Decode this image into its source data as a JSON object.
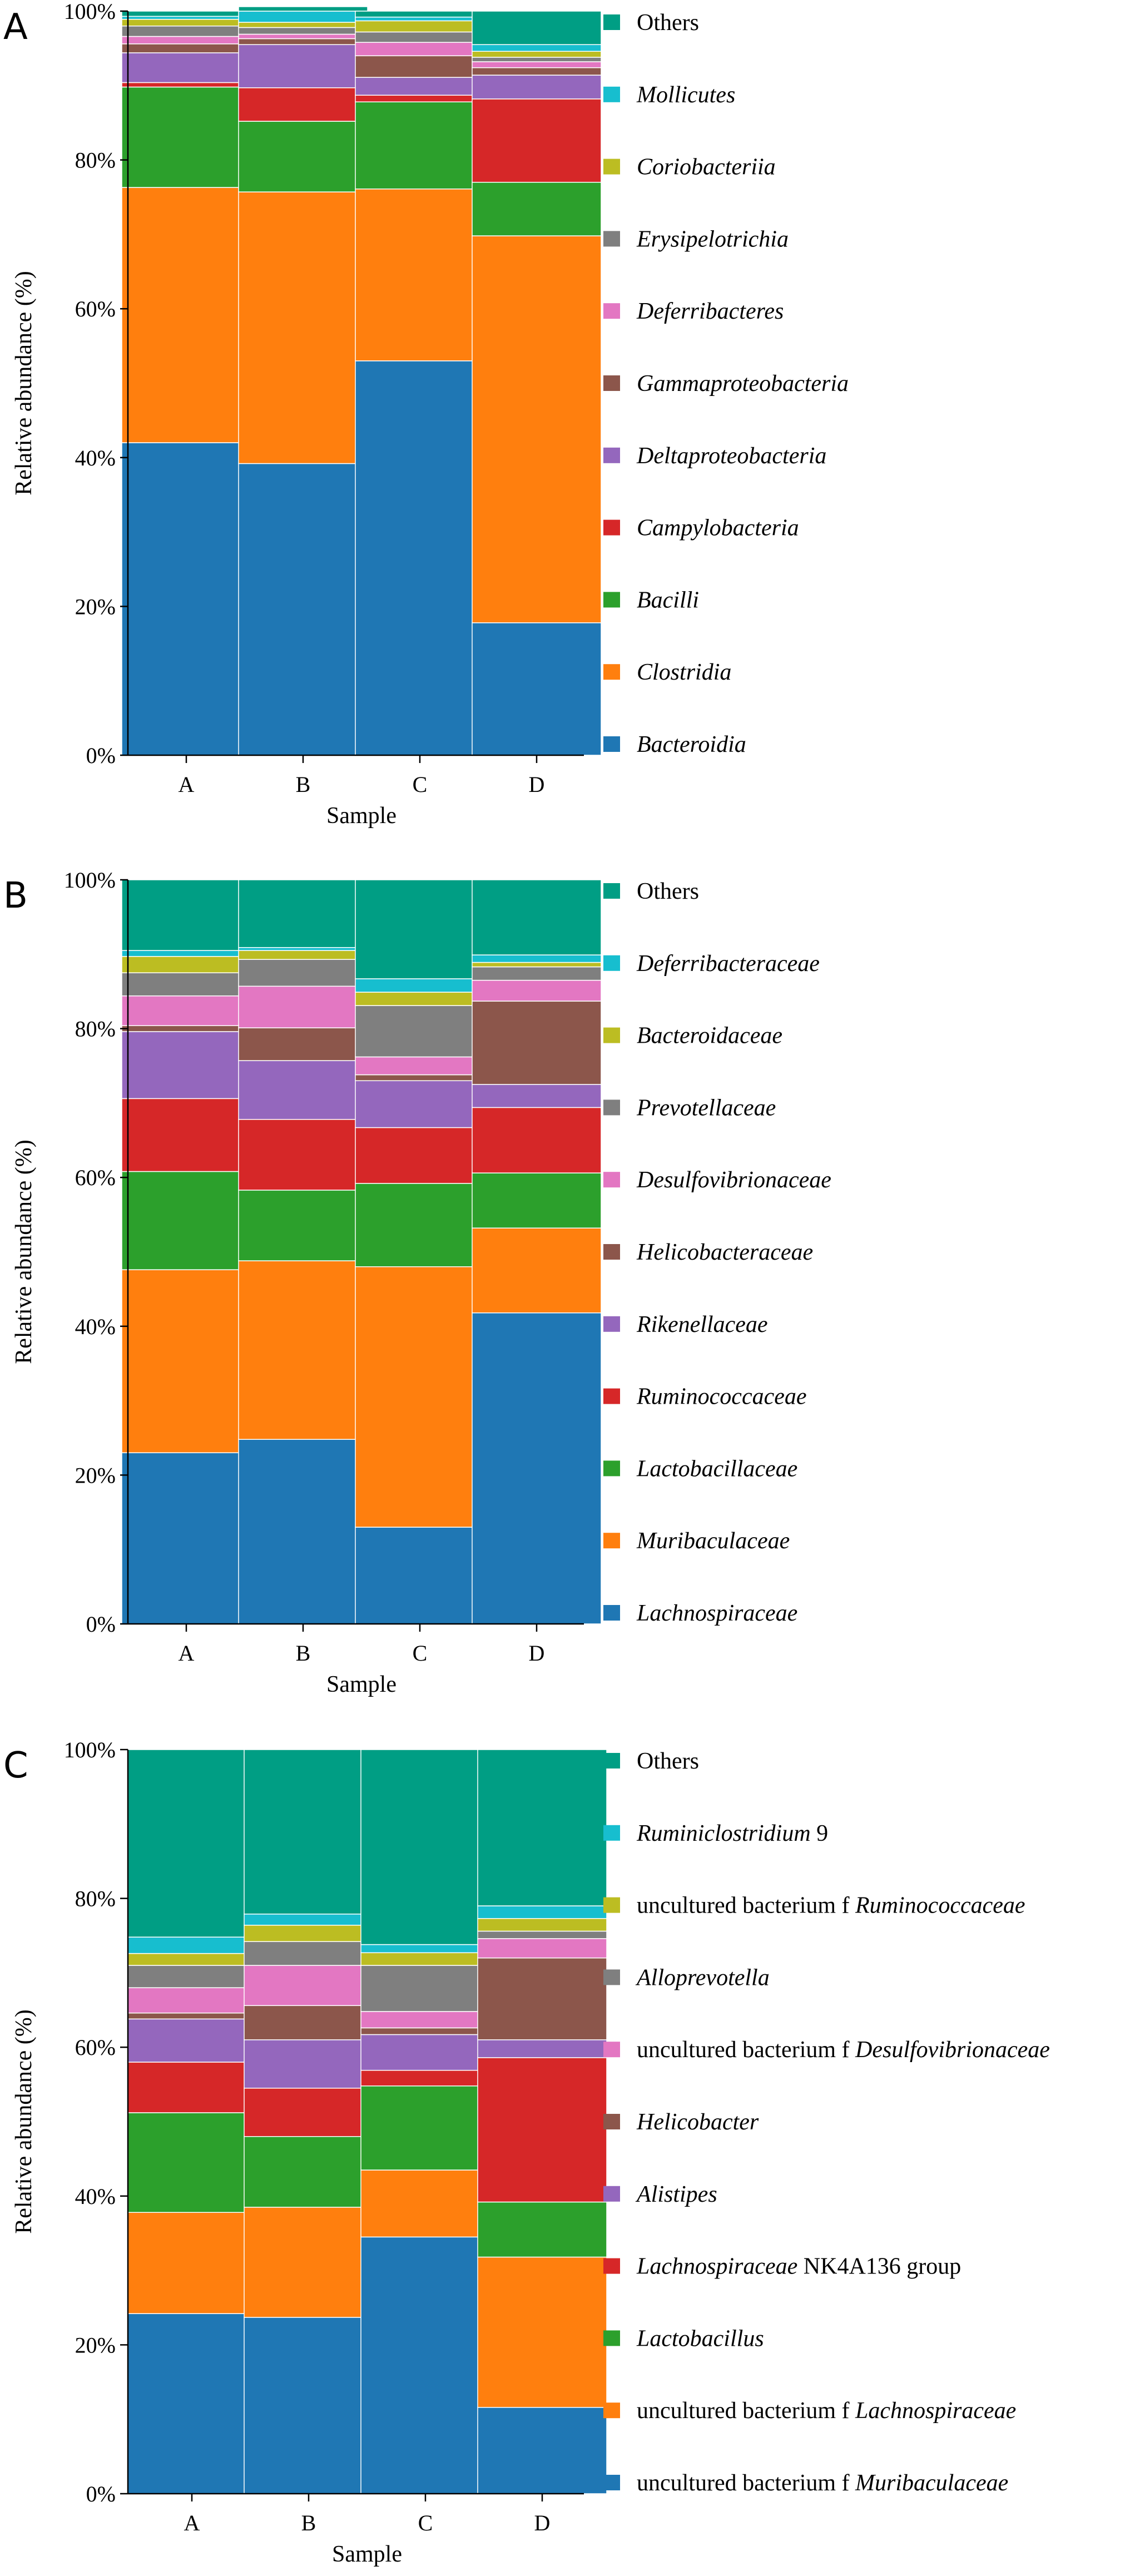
{
  "colors": {
    "Bacteroidia": "#1f77b4",
    "Clostridia": "#ff7f0e",
    "Bacilli": "#2ca02c",
    "Campylobacteria": "#d62728",
    "Deltaproteobacteria": "#9467bd",
    "Gammaproteobacteria": "#8c564b",
    "Deferribacteres": "#e377c2",
    "Erysipelotrichia": "#7f7f7f",
    "Coriobacteriia": "#bcbd22",
    "Mollicutes": "#17becf",
    "Others": "#009e84"
  },
  "chart_data": [
    {
      "type": "bar",
      "stacked": true,
      "panel_label": "A",
      "title": "",
      "xlabel": "Sample",
      "ylabel": "Relative abundance (%)",
      "ylim": [
        0,
        100
      ],
      "y_ticks": [
        "0%",
        "20%",
        "40%",
        "60%",
        "80%",
        "100%"
      ],
      "categories": [
        "A",
        "B",
        "C",
        "D"
      ],
      "legend_position": "right",
      "series": [
        {
          "name": "Bacteroidia",
          "italic": true,
          "values": [
            42.0,
            39.2,
            53.0,
            17.8
          ]
        },
        {
          "name": "Clostridia",
          "italic": true,
          "values": [
            34.3,
            36.5,
            23.1,
            52.0
          ]
        },
        {
          "name": "Bacilli",
          "italic": true,
          "values": [
            13.5,
            9.5,
            11.7,
            7.2
          ]
        },
        {
          "name": "Campylobacteria",
          "italic": true,
          "values": [
            0.6,
            4.5,
            0.9,
            11.2
          ]
        },
        {
          "name": "Deltaproteobacteria",
          "italic": true,
          "values": [
            4.0,
            5.8,
            2.4,
            3.2
          ]
        },
        {
          "name": "Gammaproteobacteria",
          "italic": true,
          "values": [
            1.2,
            0.8,
            2.9,
            1.0
          ]
        },
        {
          "name": "Deferribacteres",
          "italic": true,
          "values": [
            1.0,
            0.6,
            1.8,
            0.8
          ]
        },
        {
          "name": "Erysipelotrichia",
          "italic": true,
          "values": [
            1.4,
            0.9,
            1.4,
            0.6
          ]
        },
        {
          "name": "Coriobacteriia",
          "italic": true,
          "values": [
            0.9,
            0.7,
            1.5,
            0.8
          ]
        },
        {
          "name": "Mollicutes",
          "italic": true,
          "values": [
            0.4,
            1.5,
            0.5,
            0.9
          ]
        },
        {
          "name": "Others",
          "italic": false,
          "values": [
            0.7,
            0.6,
            0.8,
            4.5
          ]
        }
      ]
    },
    {
      "type": "bar",
      "stacked": true,
      "panel_label": "B",
      "title": "",
      "xlabel": "Sample",
      "ylabel": "Relative abundance (%)",
      "ylim": [
        0,
        100
      ],
      "y_ticks": [
        "0%",
        "20%",
        "40%",
        "60%",
        "80%",
        "100%"
      ],
      "categories": [
        "A",
        "B",
        "C",
        "D"
      ],
      "legend_position": "right",
      "series": [
        {
          "name": "Lachnospiraceae",
          "italic": true,
          "color": "#1f77b4",
          "values": [
            23.0,
            24.8,
            13.0,
            41.8
          ]
        },
        {
          "name": "Muribaculaceae",
          "italic": true,
          "color": "#ff7f0e",
          "values": [
            24.6,
            24.0,
            35.0,
            11.4
          ]
        },
        {
          "name": "Lactobacillaceae",
          "italic": true,
          "color": "#2ca02c",
          "values": [
            13.2,
            9.5,
            11.2,
            7.4
          ]
        },
        {
          "name": "Ruminococcaceae",
          "italic": true,
          "color": "#d62728",
          "values": [
            9.8,
            9.5,
            7.5,
            8.8
          ]
        },
        {
          "name": "Rikenellaceae",
          "italic": true,
          "color": "#9467bd",
          "values": [
            9.0,
            7.9,
            6.3,
            3.1
          ]
        },
        {
          "name": "Helicobacteraceae",
          "italic": true,
          "color": "#8c564b",
          "values": [
            0.8,
            4.4,
            0.8,
            11.2
          ]
        },
        {
          "name": "Desulfovibrionaceae",
          "italic": true,
          "color": "#e377c2",
          "values": [
            4.0,
            5.6,
            2.4,
            2.8
          ]
        },
        {
          "name": "Prevotellaceae",
          "italic": true,
          "color": "#7f7f7f",
          "values": [
            3.1,
            3.6,
            6.9,
            1.8
          ]
        },
        {
          "name": "Bacteroidaceae",
          "italic": true,
          "color": "#bcbd22",
          "values": [
            2.2,
            1.2,
            1.8,
            0.6
          ]
        },
        {
          "name": "Deferribacteraceae",
          "italic": true,
          "color": "#17becf",
          "values": [
            0.8,
            0.4,
            1.8,
            1.0
          ]
        },
        {
          "name": "Others",
          "italic": false,
          "color": "#009e84",
          "values": [
            9.5,
            9.1,
            13.3,
            10.1
          ]
        }
      ]
    },
    {
      "type": "bar",
      "stacked": true,
      "panel_label": "C",
      "title": "",
      "xlabel": "Sample",
      "ylabel": "Relative abundance (%)",
      "ylim": [
        0,
        100
      ],
      "y_ticks": [
        "0%",
        "20%",
        "40%",
        "60%",
        "80%",
        "100%"
      ],
      "categories": [
        "A",
        "B",
        "C",
        "D"
      ],
      "legend_position": "right",
      "series": [
        {
          "name": "uncultured bacterium f Muribaculaceae",
          "prefix": "uncultured bacterium f ",
          "italic_part": "Muribaculaceae",
          "suffix": "",
          "color": "#1f77b4",
          "values": [
            24.2,
            23.7,
            34.5,
            11.6
          ]
        },
        {
          "name": "uncultured bacterium f Lachnospiraceae",
          "prefix": "uncultured bacterium f ",
          "italic_part": "Lachnospiraceae",
          "suffix": "",
          "color": "#ff7f0e",
          "values": [
            13.6,
            14.8,
            9.0,
            20.2
          ]
        },
        {
          "name": "Lactobacillus",
          "prefix": "",
          "italic_part": "Lactobacillus",
          "suffix": "",
          "color": "#2ca02c",
          "values": [
            13.4,
            9.5,
            11.3,
            7.4
          ]
        },
        {
          "name": "Lachnospiraceae NK4A136 group",
          "prefix": "",
          "italic_part": "Lachnospiraceae",
          "suffix": " NK4A136 group",
          "color": "#d62728",
          "values": [
            6.8,
            6.5,
            2.1,
            19.4
          ]
        },
        {
          "name": "Alistipes",
          "prefix": "",
          "italic_part": "Alistipes",
          "suffix": "",
          "color": "#9467bd",
          "values": [
            5.8,
            6.5,
            4.8,
            2.4
          ]
        },
        {
          "name": "Helicobacter",
          "prefix": "",
          "italic_part": "Helicobacter",
          "suffix": "",
          "color": "#8c564b",
          "values": [
            0.8,
            4.6,
            0.9,
            11.0
          ]
        },
        {
          "name": "uncultured bacterium f Desulfovibrionaceae",
          "prefix": "uncultured bacterium f ",
          "italic_part": "Desulfovibrionaceae",
          "suffix": "",
          "color": "#e377c2",
          "values": [
            3.4,
            5.4,
            2.2,
            2.6
          ]
        },
        {
          "name": "Alloprevotella",
          "prefix": "",
          "italic_part": "Alloprevotella",
          "suffix": "",
          "color": "#7f7f7f",
          "values": [
            3.0,
            3.2,
            6.2,
            1.0
          ]
        },
        {
          "name": "uncultured bacterium f Ruminococcaceae",
          "prefix": "uncultured bacterium f ",
          "italic_part": "Ruminococcaceae",
          "suffix": "",
          "color": "#bcbd22",
          "values": [
            1.6,
            2.2,
            1.7,
            1.7
          ]
        },
        {
          "name": "Ruminiclostridium 9",
          "prefix": "",
          "italic_part": "Ruminiclostridium",
          "suffix": " 9",
          "color": "#17becf",
          "values": [
            2.2,
            1.5,
            1.1,
            1.7
          ]
        },
        {
          "name": "Others",
          "prefix": "Others",
          "italic_part": "",
          "suffix": "",
          "color": "#009e84",
          "values": [
            25.2,
            22.1,
            26.2,
            21.0
          ]
        }
      ]
    }
  ]
}
